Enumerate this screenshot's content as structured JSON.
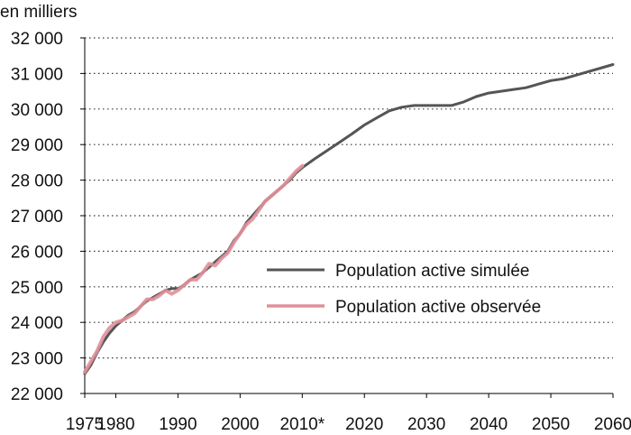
{
  "chart_data": {
    "type": "line",
    "unit_label": "en milliers",
    "xlim": [
      1975,
      2060
    ],
    "ylim": [
      22000,
      32000
    ],
    "x_ticks": [
      1975,
      1980,
      1990,
      2000,
      2010,
      2020,
      2030,
      2040,
      2050,
      2060
    ],
    "x_tick_labels": [
      "1975",
      "1980",
      "1990",
      "2000",
      "2010*",
      "2020",
      "2030",
      "2040",
      "2050",
      "2060"
    ],
    "y_ticks": [
      22000,
      23000,
      24000,
      25000,
      26000,
      27000,
      28000,
      29000,
      30000,
      31000,
      32000
    ],
    "y_tick_labels": [
      "22 000",
      "23 000",
      "24 000",
      "25 000",
      "26 000",
      "27 000",
      "28 000",
      "29 000",
      "30 000",
      "31 000",
      "32 000"
    ],
    "grid": "horizontal-dotted",
    "legend_position": "center-right",
    "series": [
      {
        "name": "Population active simulée",
        "color": "#555555",
        "x": [
          1975,
          1976,
          1977,
          1978,
          1979,
          1980,
          1981,
          1982,
          1983,
          1984,
          1985,
          1986,
          1987,
          1988,
          1989,
          1990,
          1991,
          1992,
          1993,
          1994,
          1995,
          1996,
          1997,
          1998,
          1999,
          2000,
          2001,
          2002,
          2003,
          2004,
          2005,
          2006,
          2007,
          2008,
          2009,
          2010,
          2012,
          2015,
          2018,
          2020,
          2022,
          2024,
          2026,
          2028,
          2030,
          2032,
          2034,
          2036,
          2038,
          2040,
          2042,
          2044,
          2046,
          2048,
          2050,
          2052,
          2054,
          2056,
          2058,
          2060
        ],
        "y": [
          22550,
          22800,
          23150,
          23450,
          23700,
          23900,
          24050,
          24200,
          24300,
          24450,
          24600,
          24700,
          24800,
          24900,
          24950,
          24950,
          25050,
          25200,
          25300,
          25400,
          25550,
          25700,
          25850,
          26000,
          26300,
          26500,
          26800,
          27000,
          27200,
          27400,
          27550,
          27700,
          27850,
          28000,
          28200,
          28350,
          28600,
          28950,
          29300,
          29550,
          29750,
          29950,
          30050,
          30100,
          30100,
          30100,
          30100,
          30200,
          30350,
          30450,
          30500,
          30550,
          30600,
          30700,
          30800,
          30850,
          30950,
          31050,
          31150,
          31250
        ]
      },
      {
        "name": "Population active observée",
        "color": "#e0909a",
        "x": [
          1975,
          1976,
          1977,
          1978,
          1979,
          1980,
          1981,
          1982,
          1983,
          1984,
          1985,
          1986,
          1987,
          1988,
          1989,
          1990,
          1991,
          1992,
          1993,
          1994,
          1995,
          1996,
          1997,
          1998,
          1999,
          2000,
          2001,
          2002,
          2003,
          2004,
          2005,
          2006,
          2007,
          2008,
          2009,
          2010
        ],
        "y": [
          22600,
          22900,
          23200,
          23600,
          23850,
          24000,
          24050,
          24150,
          24250,
          24450,
          24650,
          24650,
          24750,
          24900,
          24800,
          24900,
          25050,
          25200,
          25200,
          25400,
          25650,
          25600,
          25800,
          25950,
          26250,
          26500,
          26750,
          26900,
          27150,
          27400,
          27550,
          27700,
          27850,
          28050,
          28250,
          28400
        ]
      }
    ]
  }
}
